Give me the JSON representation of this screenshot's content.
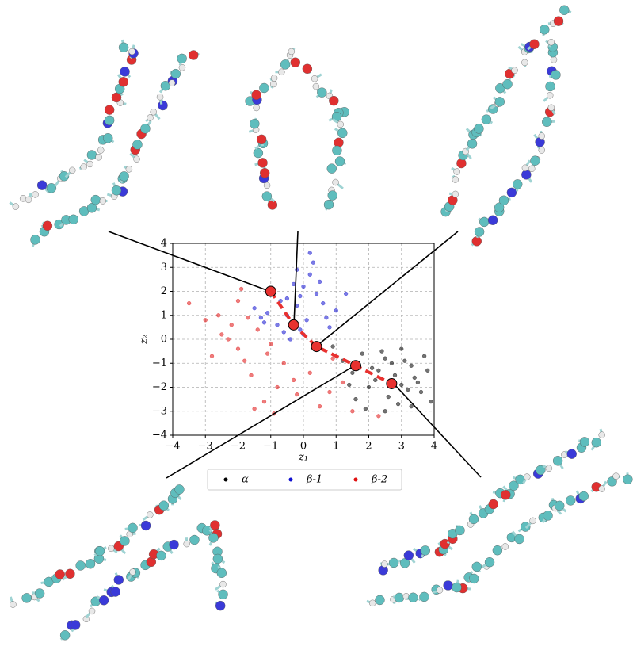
{
  "chart_data": {
    "type": "scatter",
    "xlabel": "z₁",
    "ylabel": "z₂",
    "xlim": [
      -4,
      4
    ],
    "ylim": [
      -4,
      4
    ],
    "xticks": [
      {
        "value": -4,
        "label": "−4"
      },
      {
        "value": -3,
        "label": "−3"
      },
      {
        "value": -2,
        "label": "−2"
      },
      {
        "value": -1,
        "label": "−1"
      },
      0,
      1,
      2,
      3,
      4
    ],
    "yticks": [
      {
        "value": -4,
        "label": "−4"
      },
      {
        "value": -3,
        "label": "−3"
      },
      {
        "value": -2,
        "label": "−2"
      },
      {
        "value": -1,
        "label": "−1"
      },
      0,
      1,
      2,
      3,
      4
    ],
    "grid": true,
    "series": [
      {
        "name": "α",
        "color": "#000000",
        "x": [
          2.1,
          2.5,
          2.8,
          3.0,
          3.3,
          3.6,
          1.8,
          2.2,
          2.6,
          3.1,
          3.4,
          3.8,
          1.5,
          2.0,
          2.4,
          2.9,
          3.2,
          3.7,
          1.2,
          1.9,
          2.7,
          3.5,
          0.9,
          1.6,
          2.3,
          3.0,
          3.9,
          2.5,
          1.4,
          3.3
        ],
        "y": [
          -1.2,
          -0.8,
          -1.5,
          -1.9,
          -1.1,
          -2.2,
          -0.6,
          -1.7,
          -2.4,
          -0.9,
          -1.6,
          -1.3,
          -1.4,
          -2.0,
          -0.5,
          -2.7,
          -2.1,
          -0.7,
          -0.9,
          -2.9,
          -1.0,
          -1.8,
          -0.3,
          -2.5,
          -1.3,
          -0.4,
          -2.6,
          -3.0,
          -1.9,
          -2.8
        ]
      },
      {
        "name": "β-1",
        "color": "#1010d0",
        "x": [
          -0.5,
          -0.2,
          0.1,
          0.4,
          -0.8,
          -1.1,
          -0.3,
          0.2,
          0.6,
          -0.6,
          -1.3,
          0.0,
          0.3,
          -0.1,
          0.8,
          -0.9,
          -1.5,
          0.5,
          -0.4,
          1.0,
          -0.7,
          0.2,
          -1.2,
          0.7,
          -0.2,
          0.4,
          1.3,
          -0.1,
          0.0,
          -0.5
        ],
        "y": [
          1.0,
          1.4,
          0.8,
          1.9,
          0.6,
          1.1,
          2.3,
          2.7,
          1.5,
          0.3,
          0.9,
          0.2,
          3.2,
          1.8,
          0.5,
          2.0,
          1.3,
          2.4,
          0.0,
          1.2,
          1.6,
          3.6,
          0.7,
          0.9,
          2.9,
          -0.4,
          1.9,
          0.4,
          2.2,
          1.7
        ]
      },
      {
        "name": "β-2",
        "color": "#e01010",
        "x": [
          -3.0,
          -2.5,
          -2.0,
          -1.8,
          -1.4,
          -1.0,
          -2.8,
          -2.2,
          -1.6,
          -0.8,
          -3.5,
          -2.6,
          -1.9,
          -1.2,
          0.2,
          0.8,
          -0.6,
          1.2,
          -1.5,
          -0.9,
          -2.3,
          0.5,
          -1.1,
          -0.3,
          -2.0,
          1.5,
          2.3,
          0.9,
          -1.7,
          -0.2
        ],
        "y": [
          0.8,
          0.2,
          -0.4,
          -0.9,
          0.4,
          -0.2,
          -0.7,
          0.6,
          -1.5,
          -2.0,
          1.5,
          1.0,
          2.1,
          -2.6,
          -1.4,
          -2.2,
          -1.0,
          -1.8,
          -2.9,
          -3.1,
          0.0,
          -2.8,
          -0.6,
          -1.7,
          1.6,
          -3.0,
          -3.2,
          -0.8,
          0.9,
          -2.3
        ]
      }
    ],
    "path": {
      "color": "#e8312f",
      "x": [
        -1.0,
        -0.3,
        0.4,
        1.6,
        2.7
      ],
      "y": [
        2.0,
        0.6,
        -0.3,
        -1.1,
        -1.85
      ]
    }
  }
}
